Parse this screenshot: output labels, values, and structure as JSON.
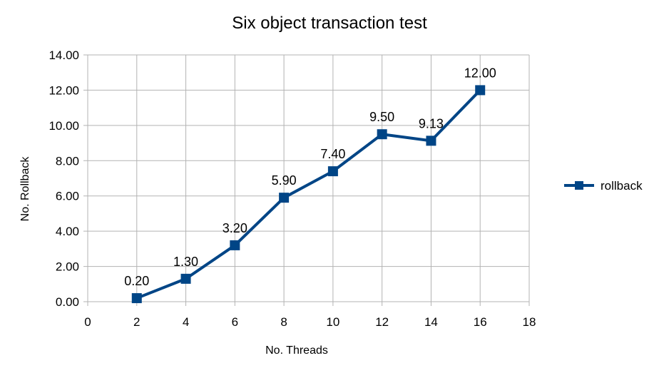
{
  "chart_data": {
    "type": "line",
    "title": "Six object transaction test",
    "xlabel": "No. Threads",
    "ylabel": "No. Rollback",
    "xlim": [
      0,
      18
    ],
    "ylim": [
      0,
      14
    ],
    "x_ticks": [
      0,
      2,
      4,
      6,
      8,
      10,
      12,
      14,
      16,
      18
    ],
    "y_ticks": [
      0,
      2,
      4,
      6,
      8,
      10,
      12,
      14
    ],
    "x_tick_labels": [
      "0",
      "2",
      "4",
      "6",
      "8",
      "10",
      "12",
      "14",
      "16",
      "18"
    ],
    "y_tick_labels": [
      "0.00",
      "2.00",
      "4.00",
      "6.00",
      "8.00",
      "10.00",
      "12.00",
      "14.00"
    ],
    "grid": true,
    "legend_position": "right",
    "series": [
      {
        "name": "rollback",
        "color": "#004586",
        "marker": "square",
        "x": [
          2,
          4,
          6,
          8,
          10,
          12,
          14,
          16
        ],
        "y": [
          0.2,
          1.3,
          3.2,
          5.9,
          7.4,
          9.5,
          9.13,
          12.0
        ],
        "labels": [
          "0.20",
          "1.30",
          "3.20",
          "5.90",
          "7.40",
          "9.50",
          "9.13",
          "12.00"
        ]
      }
    ]
  }
}
